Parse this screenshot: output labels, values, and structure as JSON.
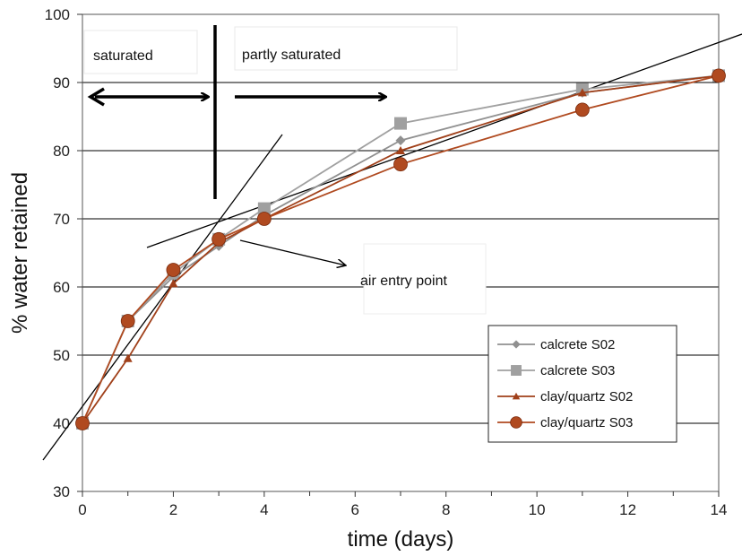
{
  "chart_data": {
    "type": "line",
    "xlabel": "time (days)",
    "ylabel": "% water retained",
    "xlim": [
      0,
      14
    ],
    "ylim": [
      30,
      100
    ],
    "xticks": [
      0,
      2,
      4,
      6,
      8,
      10,
      12,
      14
    ],
    "yticks": [
      30,
      40,
      50,
      60,
      70,
      80,
      90,
      100
    ],
    "grid": "horizontal",
    "legend_position": "bottom-right",
    "series": [
      {
        "name": "calcrete S02",
        "color": "#909090",
        "marker": "diamond",
        "x": [
          0,
          1,
          2,
          3,
          4,
          7,
          11,
          14
        ],
        "y": [
          40,
          55,
          61.5,
          66,
          70.5,
          81.5,
          88.5,
          91
        ]
      },
      {
        "name": "calcrete S03",
        "color": "#a0a0a0",
        "marker": "square",
        "x": [
          0,
          1,
          2,
          3,
          4,
          7,
          11,
          14
        ],
        "y": [
          40,
          55,
          62,
          67,
          71.5,
          84,
          89,
          91
        ]
      },
      {
        "name": "clay/quartz S02",
        "color": "#a0401a",
        "marker": "triangle",
        "x": [
          0,
          1,
          2,
          3,
          4,
          7,
          11,
          14
        ],
        "y": [
          40,
          49.5,
          60.5,
          66.5,
          70,
          80,
          88.5,
          91
        ]
      },
      {
        "name": "clay/quartz S03",
        "color": "#b04a20",
        "marker": "circle",
        "x": [
          0,
          1,
          2,
          3,
          4,
          7,
          11,
          14
        ],
        "y": [
          40,
          55,
          62.5,
          67,
          70,
          78,
          86,
          91
        ]
      }
    ],
    "annotations": {
      "saturated": "saturated",
      "partly_saturated": "partly saturated",
      "air_entry_point": "air entry point"
    }
  }
}
